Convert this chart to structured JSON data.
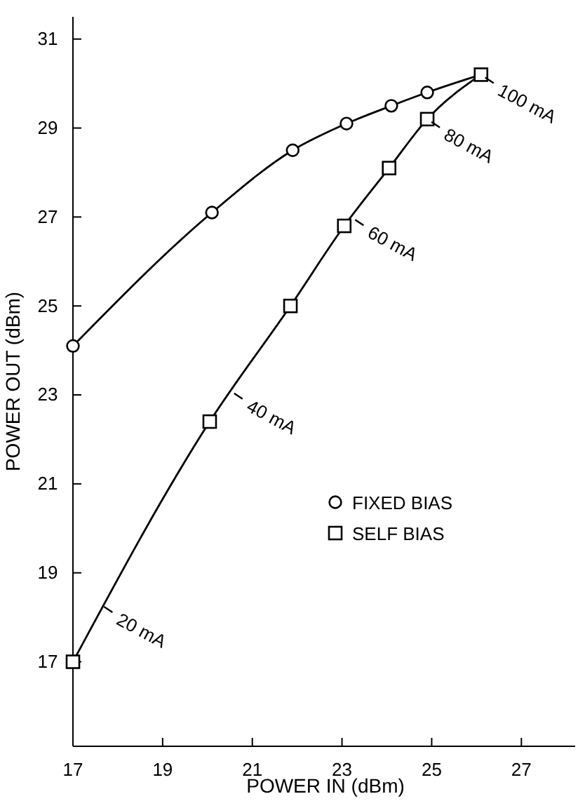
{
  "chart_data": {
    "type": "line",
    "xlabel": "POWER IN (dBm)",
    "ylabel": "POWER OUT (dBm)",
    "xlim": [
      17,
      28.2
    ],
    "xticks": [
      17,
      19,
      21,
      23,
      25,
      27
    ],
    "ylim": [
      15.1,
      31.5
    ],
    "yticks": [
      17,
      19,
      21,
      23,
      25,
      27,
      29,
      31
    ],
    "grid": false,
    "legend": "right",
    "line_style": "solid",
    "series": [
      {
        "name": "FIXED BIAS",
        "color": "#000000",
        "marker": "circle",
        "x": [
          17,
          20.1,
          21.9,
          23.1,
          24.1,
          24.9,
          26.1
        ],
        "values": [
          24.1,
          27.1,
          28.5,
          29.1,
          29.5,
          29.8,
          30.2
        ]
      },
      {
        "name": "SELF BIAS",
        "color": "#000000",
        "marker": "square",
        "x": [
          17,
          20.05,
          21.85,
          23.05,
          24.05,
          24.9,
          26.1
        ],
        "values": [
          17.0,
          22.4,
          25.0,
          26.8,
          28.1,
          29.2,
          30.2
        ]
      }
    ],
    "annotations": [
      {
        "text": "20 mA",
        "x": 17.6,
        "y": 18.3
      },
      {
        "text": "40 mA",
        "x": 20.5,
        "y": 23.1
      },
      {
        "text": "60 mA",
        "x": 23.2,
        "y": 27.0
      },
      {
        "text": "80 mA",
        "x": 24.9,
        "y": 29.2
      },
      {
        "text": "100 mA",
        "x": 26.1,
        "y": 30.2
      }
    ]
  }
}
